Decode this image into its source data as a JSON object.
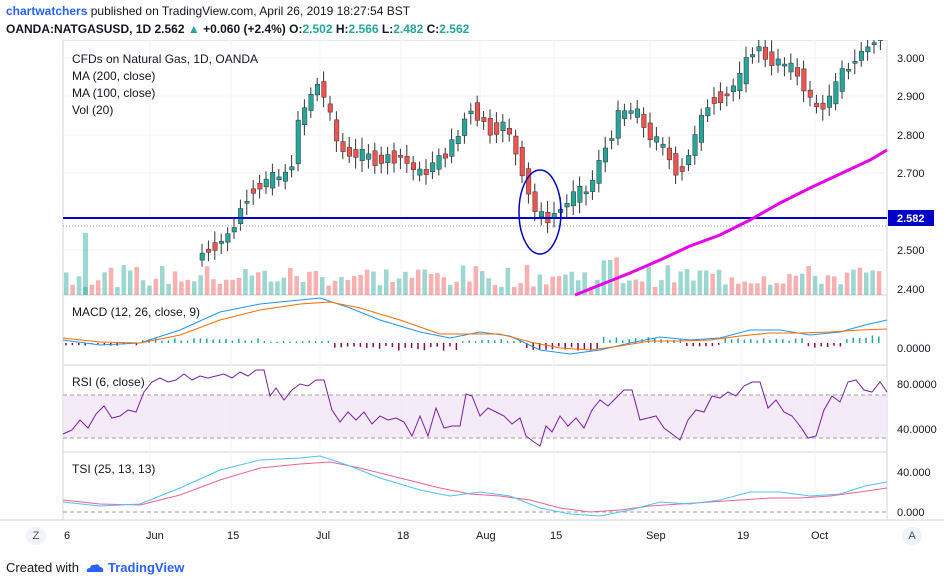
{
  "header": {
    "author": "chartwatchers",
    "published": "published on TradingView.com, April 26, 2019 18:27:54 BST",
    "symbol": "OANDA:NATGASUSD, 1D",
    "last": "2.562",
    "change": "+0.060 (+2.4%)",
    "o_label": "O:",
    "o": "2.502",
    "h_label": "H:",
    "h": "2.566",
    "l_label": "L:",
    "l": "2.482",
    "c_label": "C:",
    "c": "2.562"
  },
  "legend": {
    "main": [
      "CFDs on Natural Gas, 1D, OANDA",
      "MA (200, close)",
      "MA (100, close)",
      "Vol (20)"
    ],
    "macd": "MACD (12, 26, close, 9)",
    "rsi": "RSI (6, close)",
    "tsi": "TSI (25, 13, 13)"
  },
  "price_axis": {
    "ticks": [
      "3.000",
      "2.900",
      "2.800",
      "2.700",
      "2.500",
      "2.400"
    ],
    "current_label": "2.582",
    "current_color": "#0000c8"
  },
  "macd_axis": {
    "ticks": [
      "0.0000"
    ]
  },
  "rsi_axis": {
    "ticks": [
      "80.0000",
      "40.0000"
    ]
  },
  "tsi_axis": {
    "ticks": [
      "40.000",
      "0.000"
    ]
  },
  "time_axis": {
    "labels": [
      "6",
      "Jun",
      "15",
      "Jul",
      "18",
      "Aug",
      "15",
      "Sep",
      "19",
      "Oct"
    ]
  },
  "colors": {
    "up": "#26a69a",
    "down": "#ef5350",
    "ma": "#e600e6",
    "support": "#0000c8",
    "macd": "#2196f3",
    "signal": "#ff6d00",
    "rsi": "#7b1fa2",
    "tsi_main": "#4fc3f7",
    "tsi_signal": "#f06292"
  },
  "buttons": {
    "z": "Z",
    "a": "A"
  },
  "footer": {
    "created_with": "Created with",
    "brand": "TradingView"
  }
}
